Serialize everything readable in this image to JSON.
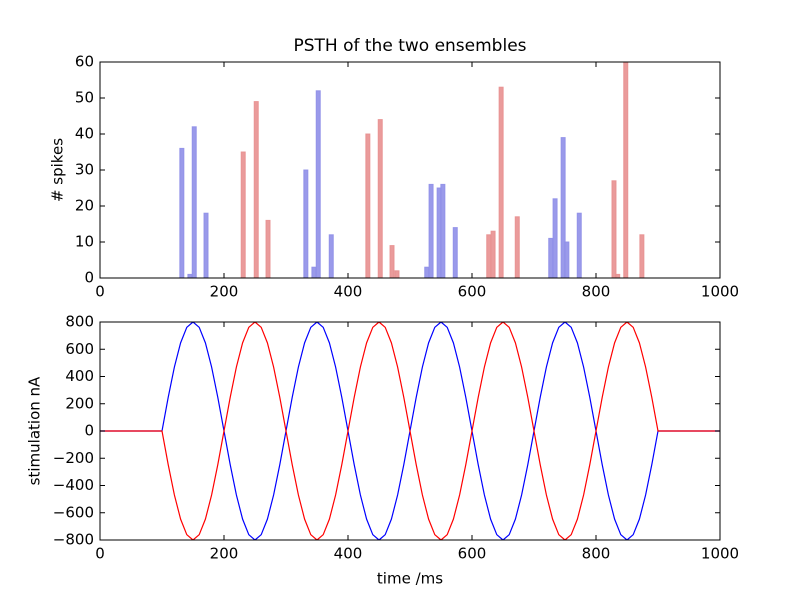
{
  "chart_data": [
    {
      "type": "bar",
      "title": "PSTH of the two ensembles",
      "ylabel": "# spikes",
      "xlim": [
        0,
        1000
      ],
      "xticks": [
        0,
        200,
        400,
        600,
        800,
        1000
      ],
      "ylim": [
        0,
        60
      ],
      "yticks": [
        0,
        10,
        20,
        30,
        40,
        50,
        60
      ],
      "series": [
        {
          "color": "#8f8fe8",
          "x": [
            132,
            145,
            152,
            171,
            332,
            345,
            352,
            373,
            527,
            534,
            547,
            553,
            573,
            727,
            734,
            747,
            753,
            773
          ],
          "values": [
            36,
            1,
            42,
            18,
            30,
            3,
            52,
            12,
            3,
            26,
            25,
            26,
            14,
            11,
            22,
            39,
            10,
            18
          ]
        },
        {
          "color": "#e89090",
          "x": [
            231,
            252,
            271,
            432,
            452,
            471,
            479,
            627,
            634,
            647,
            673,
            829,
            835,
            848,
            874
          ],
          "values": [
            35,
            49,
            16,
            40,
            44,
            9,
            2,
            12,
            13,
            53,
            17,
            27,
            1,
            61,
            12
          ]
        }
      ]
    },
    {
      "type": "line",
      "xlabel": "time /ms",
      "ylabel": "stimulation nA",
      "xlim": [
        0,
        1000
      ],
      "xticks": [
        0,
        200,
        400,
        600,
        800,
        1000
      ],
      "ylim": [
        -800,
        800
      ],
      "yticks": [
        {
          "value": -800,
          "label": "−800"
        },
        {
          "value": -600,
          "label": "−600"
        },
        {
          "value": -400,
          "label": "−400"
        },
        {
          "value": -200,
          "label": "−200"
        },
        0,
        200,
        400,
        600,
        800
      ],
      "x": [
        0,
        100,
        110,
        120,
        130,
        140,
        150,
        160,
        170,
        180,
        190,
        200,
        210,
        220,
        230,
        240,
        250,
        260,
        270,
        280,
        290,
        300,
        310,
        320,
        330,
        340,
        350,
        360,
        370,
        380,
        390,
        400,
        410,
        420,
        430,
        440,
        450,
        460,
        470,
        480,
        490,
        500,
        510,
        520,
        530,
        540,
        550,
        560,
        570,
        580,
        590,
        600,
        610,
        620,
        630,
        640,
        650,
        660,
        670,
        680,
        690,
        700,
        710,
        720,
        730,
        740,
        750,
        760,
        770,
        780,
        790,
        800,
        810,
        820,
        830,
        840,
        850,
        860,
        870,
        880,
        890,
        900,
        1000
      ],
      "series": [
        {
          "color": "#0000ff",
          "values": [
            0,
            0,
            247,
            470,
            647,
            761,
            800,
            761,
            647,
            470,
            247,
            0,
            -247,
            -470,
            -647,
            -761,
            -800,
            -761,
            -647,
            -470,
            -247,
            0,
            247,
            470,
            647,
            761,
            800,
            761,
            647,
            470,
            247,
            0,
            -247,
            -470,
            -647,
            -761,
            -800,
            -761,
            -647,
            -470,
            -247,
            0,
            247,
            470,
            647,
            761,
            800,
            761,
            647,
            470,
            247,
            0,
            -247,
            -470,
            -647,
            -761,
            -800,
            -761,
            -647,
            -470,
            -247,
            0,
            247,
            470,
            647,
            761,
            800,
            761,
            647,
            470,
            247,
            0,
            -247,
            -470,
            -647,
            -761,
            -800,
            -761,
            -647,
            -470,
            -247,
            0,
            0
          ]
        },
        {
          "color": "#ff0000",
          "values": [
            0,
            0,
            -247,
            -470,
            -647,
            -761,
            -800,
            -761,
            -647,
            -470,
            -247,
            0,
            247,
            470,
            647,
            761,
            800,
            761,
            647,
            470,
            247,
            0,
            -247,
            -470,
            -647,
            -761,
            -800,
            -761,
            -647,
            -470,
            -247,
            0,
            247,
            470,
            647,
            761,
            800,
            761,
            647,
            470,
            247,
            0,
            -247,
            -470,
            -647,
            -761,
            -800,
            -761,
            -647,
            -470,
            -247,
            0,
            247,
            470,
            647,
            761,
            800,
            761,
            647,
            470,
            247,
            0,
            -247,
            -470,
            -647,
            -761,
            -800,
            -761,
            -647,
            -470,
            -247,
            0,
            247,
            470,
            647,
            761,
            800,
            761,
            647,
            470,
            247,
            0,
            0
          ]
        }
      ]
    }
  ]
}
